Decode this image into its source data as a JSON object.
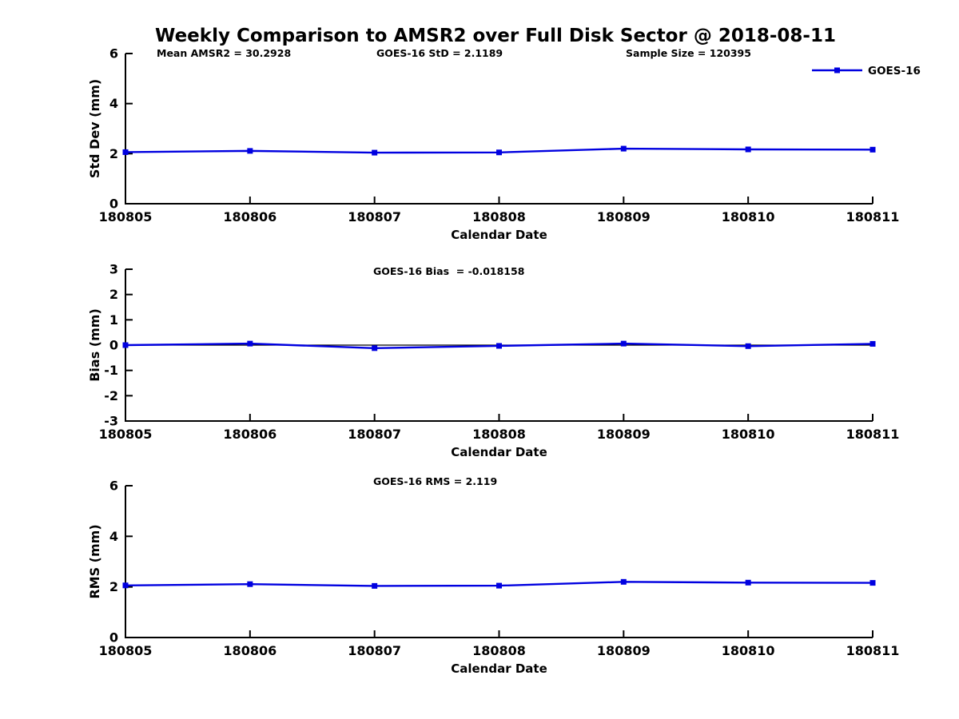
{
  "title": "Weekly Comparison to AMSR2 over Full Disk Sector @ 2018-08-11",
  "colors": {
    "series": "#0000e0",
    "axis": "#000000",
    "zero_line": "#000000",
    "background": "#ffffff"
  },
  "legend": {
    "label": "GOES-16",
    "position": "top-right"
  },
  "chart_data": [
    {
      "type": "line",
      "id": "std-dev",
      "categories": [
        "180805",
        "180806",
        "180807",
        "180808",
        "180809",
        "180810",
        "180811"
      ],
      "series": [
        {
          "name": "GOES-16",
          "values": [
            2.06,
            2.11,
            2.04,
            2.05,
            2.2,
            2.17,
            2.16
          ]
        }
      ],
      "xlabel": "Calendar Date",
      "ylabel": "Std Dev (mm)",
      "ylim": [
        0,
        6
      ],
      "yticks": [
        0,
        2,
        4,
        6
      ],
      "grid": false,
      "marker": "square",
      "annotations": [
        "Mean AMSR2 = 30.2928",
        "GOES-16 StD = 2.1189",
        "Sample Size = 120395"
      ]
    },
    {
      "type": "line",
      "id": "bias",
      "categories": [
        "180805",
        "180806",
        "180807",
        "180808",
        "180809",
        "180810",
        "180811"
      ],
      "series": [
        {
          "name": "GOES-16",
          "values": [
            0.0,
            0.06,
            -0.12,
            -0.03,
            0.06,
            -0.04,
            0.05
          ]
        }
      ],
      "xlabel": "Calendar Date",
      "ylabel": "Bias (mm)",
      "ylim": [
        -3,
        3
      ],
      "yticks": [
        -3,
        -2,
        -1,
        0,
        1,
        2,
        3
      ],
      "grid": false,
      "marker": "square",
      "zero_line": true,
      "annotations": [
        "GOES-16 Bias  = -0.018158"
      ]
    },
    {
      "type": "line",
      "id": "rms",
      "categories": [
        "180805",
        "180806",
        "180807",
        "180808",
        "180809",
        "180810",
        "180811"
      ],
      "series": [
        {
          "name": "GOES-16",
          "values": [
            2.06,
            2.11,
            2.04,
            2.05,
            2.2,
            2.17,
            2.16
          ]
        }
      ],
      "xlabel": "Calendar Date",
      "ylabel": "RMS (mm)",
      "ylim": [
        0,
        6
      ],
      "yticks": [
        0,
        2,
        4,
        6
      ],
      "grid": false,
      "marker": "square",
      "annotations": [
        "GOES-16 RMS = 2.119"
      ]
    }
  ]
}
